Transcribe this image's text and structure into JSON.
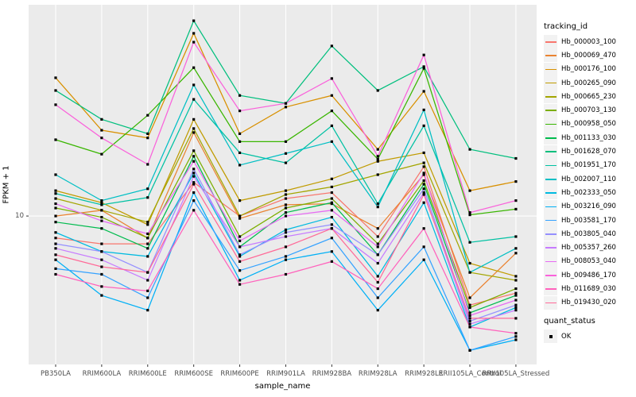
{
  "figure": {
    "y_axis_title": "FPKM + 1",
    "x_axis_title": "sample_name",
    "y_tick_label": "10"
  },
  "legend": {
    "tracking_title": "tracking_id",
    "quant_title": "quant_status",
    "quant_items": [
      {
        "label": "OK",
        "marker": "black-square"
      }
    ]
  },
  "chart_data": {
    "type": "line",
    "title": "",
    "xlabel": "sample_name",
    "ylabel": "FPKM + 1",
    "y_scale": "log10",
    "ylim": [
      2.84,
      60
    ],
    "y_ticks": [
      10
    ],
    "y_tick_labels": [
      "10"
    ],
    "grid": "white major gridlines on gray panel; vertical line per category; horizontal line at y=10",
    "legend_position": "right",
    "point_marker": "black-square",
    "colors": {
      "panel_bg": "#EBEBEB",
      "grid": "#FFFFFF",
      "axis_text": "#4D4D4D",
      "tick_mark": "#333333",
      "point": "#000000",
      "legend_key_bg": "#F2F2F2"
    },
    "categories": [
      "PB350LA",
      "RRIM600LA",
      "RRIM600LE",
      "RRIM600SE",
      "RRIM600PE",
      "RRIM901LA",
      "RRIM928BA",
      "RRIM928LA",
      "RRIM928LE",
      "RRII105LA_Control",
      "RRII105LA_Stressed"
    ],
    "series": [
      {
        "name": "Hb_000003_100",
        "color": "#F8766D",
        "values": [
          8.3,
          7.9,
          7.9,
          13.3,
          10.0,
          11.6,
          12.2,
          8.4,
          15.2,
          4.7,
          5.2
        ]
      },
      {
        "name": "Hb_000069_470",
        "color": "#EA8331",
        "values": [
          10.0,
          10.5,
          8.3,
          20.3,
          9.8,
          11.0,
          11.1,
          9.0,
          14.2,
          5.0,
          7.3
        ]
      },
      {
        "name": "Hb_000176_100",
        "color": "#D89000",
        "values": [
          32.3,
          20.7,
          19.4,
          47.1,
          20.1,
          25.2,
          27.8,
          17.6,
          28.8,
          12.4,
          13.4
        ]
      },
      {
        "name": "Hb_000265_090",
        "color": "#C09B00",
        "values": [
          12.4,
          11.2,
          9.3,
          22.7,
          11.4,
          12.4,
          13.7,
          15.9,
          17.1,
          6.7,
          6.0
        ]
      },
      {
        "name": "Hb_000665_230",
        "color": "#A3A500",
        "values": [
          11.6,
          10.5,
          9.5,
          21.0,
          10.0,
          12.0,
          12.8,
          14.2,
          15.7,
          6.2,
          5.8
        ]
      },
      {
        "name": "Hb_000703_130",
        "color": "#7CAE00",
        "values": [
          10.7,
          9.9,
          8.3,
          17.4,
          8.4,
          10.7,
          11.6,
          7.9,
          13.5,
          4.6,
          5.4
        ]
      },
      {
        "name": "Hb_000958_050",
        "color": "#39B600",
        "values": [
          19.1,
          16.9,
          23.5,
          35.2,
          18.8,
          18.8,
          24.4,
          16.2,
          35.0,
          10.1,
          10.6
        ]
      },
      {
        "name": "Hb_001133_030",
        "color": "#00BB4E",
        "values": [
          9.5,
          9.0,
          7.6,
          16.6,
          7.7,
          10.3,
          11.2,
          7.2,
          13.1,
          4.4,
          5.1
        ]
      },
      {
        "name": "Hb_001628_070",
        "color": "#00BF7D",
        "values": [
          29.0,
          22.7,
          20.1,
          52.4,
          27.8,
          26.0,
          42.3,
          29.0,
          35.5,
          17.6,
          16.3
        ]
      },
      {
        "name": "Hb_001951_170",
        "color": "#00C1A3",
        "values": [
          12.1,
          11.0,
          11.7,
          26.9,
          17.1,
          15.7,
          21.5,
          11.1,
          21.5,
          8.0,
          8.4
        ]
      },
      {
        "name": "Hb_002007_110",
        "color": "#00BFC4",
        "values": [
          14.2,
          11.4,
          12.6,
          30.4,
          15.4,
          17.0,
          18.8,
          10.8,
          24.6,
          6.2,
          7.6
        ]
      },
      {
        "name": "Hb_002333_050",
        "color": "#00BAE0",
        "values": [
          8.7,
          7.4,
          7.1,
          14.4,
          7.1,
          8.9,
          9.9,
          6.0,
          11.2,
          3.9,
          4.6
        ]
      },
      {
        "name": "Hb_003216_090",
        "color": "#00B0F6",
        "values": [
          6.9,
          5.1,
          4.5,
          12.2,
          5.8,
          6.9,
          7.4,
          4.5,
          6.9,
          3.2,
          3.5
        ]
      },
      {
        "name": "Hb_003581_170",
        "color": "#35A2FF",
        "values": [
          6.4,
          6.1,
          5.0,
          11.4,
          6.3,
          7.1,
          8.3,
          5.0,
          7.7,
          3.2,
          3.6
        ]
      },
      {
        "name": "Hb_003805_040",
        "color": "#9590FF",
        "values": [
          7.9,
          7.4,
          6.2,
          14.9,
          7.2,
          8.7,
          9.3,
          7.2,
          12.6,
          4.1,
          4.7
        ]
      },
      {
        "name": "Hb_005357_260",
        "color": "#C77CFF",
        "values": [
          7.6,
          6.9,
          5.8,
          14.0,
          7.7,
          8.4,
          9.0,
          6.7,
          12.2,
          4.0,
          4.5
        ]
      },
      {
        "name": "Hb_008053_040",
        "color": "#E76BF3",
        "values": [
          11.1,
          9.6,
          8.6,
          15.9,
          8.1,
          10.0,
          10.5,
          7.7,
          14.4,
          4.3,
          4.9
        ]
      },
      {
        "name": "Hb_009486_170",
        "color": "#FA62DB",
        "values": [
          25.7,
          19.4,
          15.5,
          43.7,
          24.4,
          26.0,
          32.1,
          16.6,
          39.2,
          10.3,
          11.4
        ]
      },
      {
        "name": "Hb_011689_030",
        "color": "#FF62BC",
        "values": [
          6.1,
          5.5,
          5.3,
          10.5,
          5.6,
          6.1,
          6.8,
          5.4,
          9.0,
          3.9,
          3.7
        ]
      },
      {
        "name": "Hb_019430_020",
        "color": "#FF6A98",
        "values": [
          7.2,
          6.5,
          6.2,
          13.1,
          6.8,
          7.7,
          9.0,
          5.7,
          12.0,
          4.2,
          4.2
        ]
      }
    ]
  }
}
